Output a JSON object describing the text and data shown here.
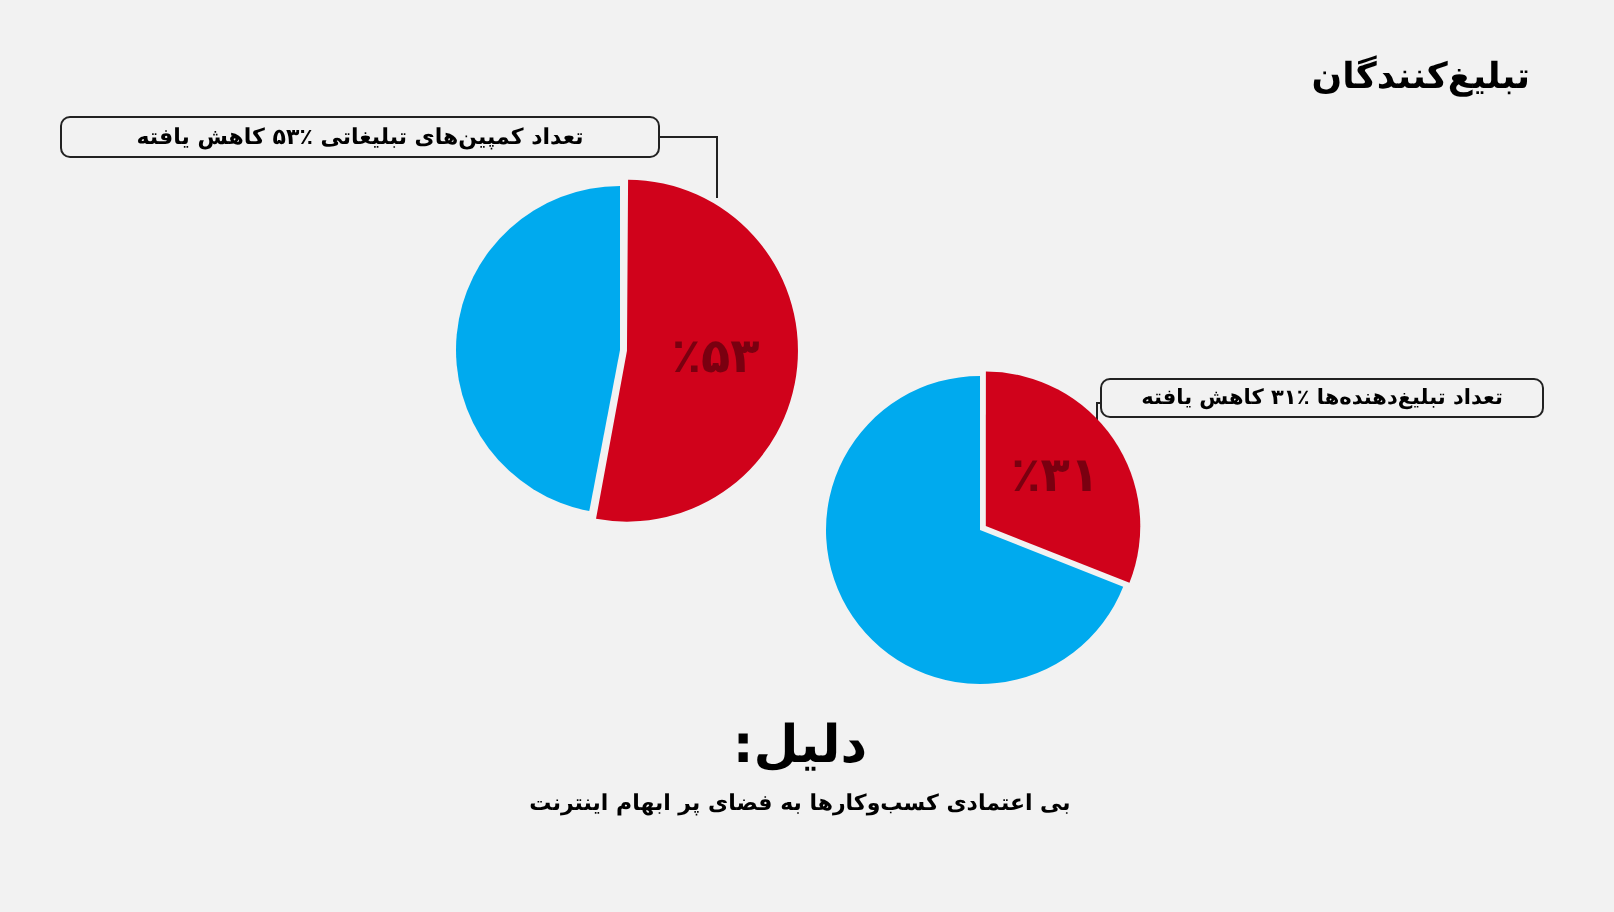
{
  "chart_data": [
    {
      "type": "pie",
      "categories": [
        null,
        null
      ],
      "values": [
        53,
        47
      ],
      "colors": [
        "#d0021b",
        "#00aaee"
      ],
      "value_labels": [
        "٪۵۳",
        null
      ],
      "annotations": [
        "تعداد کمپین‌های تبلیغاتی ٪۵۳ کاهش یافته"
      ]
    },
    {
      "type": "pie",
      "title": "تبلیغ‌کنندگان",
      "categories": [
        null,
        null
      ],
      "values": [
        31,
        69
      ],
      "colors": [
        "#d0021b",
        "#00aaee"
      ],
      "value_labels": [
        "٪۳۱",
        null
      ],
      "annotations": [
        "تعداد تبلیغ‌دهنده‌ها ٪۳۱ کاهش یافته",
        "دلیل:",
        "بی اعتمادی کسب‌وکارها به فضای پر ابهام اینترنت"
      ]
    }
  ]
}
